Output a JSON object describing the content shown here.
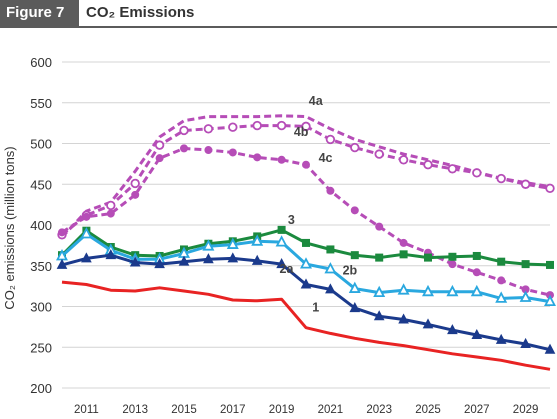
{
  "header": {
    "figure_label": "Figure 7",
    "title": "CO₂ Emissions"
  },
  "chart_data": {
    "type": "line",
    "ylabel": "CO₂ emissions (million tons)",
    "xlabel": "",
    "ylim": [
      200,
      600
    ],
    "yticks": [
      200,
      250,
      300,
      350,
      400,
      450,
      500,
      550,
      600
    ],
    "x": [
      2010,
      2011,
      2012,
      2013,
      2014,
      2015,
      2016,
      2017,
      2018,
      2019,
      2020,
      2021,
      2022,
      2023,
      2024,
      2025,
      2026,
      2027,
      2028,
      2029,
      2030
    ],
    "xticks": [
      2011,
      2013,
      2015,
      2017,
      2019,
      2021,
      2023,
      2025,
      2027,
      2029
    ],
    "grid": true,
    "series": [
      {
        "name": "4a",
        "color": "#b64db7",
        "style": "dashed",
        "marker": "none",
        "values": [
          385,
          417,
          428,
          466,
          508,
          528,
          533,
          533,
          533,
          534,
          533,
          518,
          505,
          496,
          487,
          480,
          473,
          465,
          457,
          452,
          447
        ]
      },
      {
        "name": "4b",
        "color": "#b64db7",
        "style": "dashed",
        "marker": "open-circle",
        "values": [
          388,
          412,
          424,
          451,
          498,
          516,
          518,
          520,
          522,
          522,
          521,
          505,
          495,
          487,
          480,
          474,
          469,
          464,
          457,
          450,
          445
        ]
      },
      {
        "name": "4c",
        "color": "#b64db7",
        "style": "dashed",
        "marker": "filled-circle",
        "values": [
          391,
          410,
          414,
          437,
          482,
          494,
          492,
          489,
          483,
          480,
          474,
          442,
          418,
          398,
          378,
          366,
          352,
          342,
          332,
          321,
          314
        ]
      },
      {
        "name": "3",
        "color": "#1b8a3e",
        "style": "solid",
        "marker": "filled-square",
        "values": [
          363,
          393,
          373,
          363,
          362,
          370,
          377,
          380,
          386,
          394,
          378,
          370,
          363,
          360,
          364,
          360,
          361,
          362,
          355,
          352,
          351
        ]
      },
      {
        "name": "2b",
        "color": "#2aa8df",
        "style": "solid",
        "marker": "open-triangle",
        "values": [
          362,
          389,
          369,
          358,
          358,
          365,
          374,
          376,
          380,
          379,
          352,
          346,
          322,
          317,
          320,
          318,
          318,
          318,
          310,
          311,
          306
        ]
      },
      {
        "name": "2a",
        "color": "#1b3a8c",
        "style": "solid",
        "marker": "filled-triangle",
        "values": [
          351,
          359,
          363,
          354,
          352,
          355,
          358,
          359,
          356,
          352,
          327,
          321,
          298,
          288,
          284,
          278,
          271,
          265,
          259,
          254,
          247
        ]
      },
      {
        "name": "1",
        "color": "#e82323",
        "style": "solid",
        "marker": "none",
        "values": [
          330,
          327,
          320,
          319,
          323,
          319,
          315,
          308,
          307,
          309,
          274,
          267,
          261,
          256,
          252,
          247,
          242,
          238,
          234,
          228,
          223
        ]
      }
    ]
  }
}
